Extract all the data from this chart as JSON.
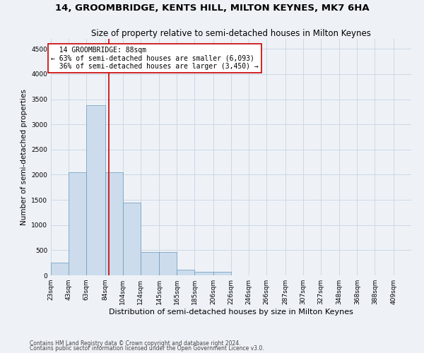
{
  "title": "14, GROOMBRIDGE, KENTS HILL, MILTON KEYNES, MK7 6HA",
  "subtitle": "Size of property relative to semi-detached houses in Milton Keynes",
  "xlabel": "Distribution of semi-detached houses by size in Milton Keynes",
  "ylabel": "Number of semi-detached properties",
  "footnote1": "Contains HM Land Registry data © Crown copyright and database right 2024.",
  "footnote2": "Contains public sector information licensed under the Open Government Licence v3.0.",
  "bar_color": "#ccdcec",
  "bar_edge_color": "#6699bb",
  "grid_color": "#ccd8e4",
  "background_color": "#eef2f7",
  "vline_x": 88,
  "vline_color": "#cc0000",
  "annotation_text": "  14 GROOMBRIDGE: 88sqm\n← 63% of semi-detached houses are smaller (6,093)\n  36% of semi-detached houses are larger (3,450) →",
  "annotation_box_color": "#ffffff",
  "annotation_box_edge": "#cc0000",
  "bin_edges": [
    23,
    43,
    63,
    84,
    104,
    124,
    145,
    165,
    185,
    206,
    226,
    246,
    266,
    287,
    307,
    327,
    348,
    368,
    388,
    409,
    429
  ],
  "bar_heights": [
    250,
    2050,
    3380,
    2050,
    1450,
    470,
    470,
    110,
    70,
    65,
    5,
    2,
    1,
    1,
    0,
    0,
    0,
    0,
    0,
    0
  ],
  "ylim": [
    0,
    4700
  ],
  "yticks": [
    0,
    500,
    1000,
    1500,
    2000,
    2500,
    3000,
    3500,
    4000,
    4500
  ],
  "title_fontsize": 9.5,
  "subtitle_fontsize": 8.5,
  "xlabel_fontsize": 8,
  "ylabel_fontsize": 7.5,
  "tick_fontsize": 6.5,
  "annotation_fontsize": 7,
  "footnote_fontsize": 5.5
}
